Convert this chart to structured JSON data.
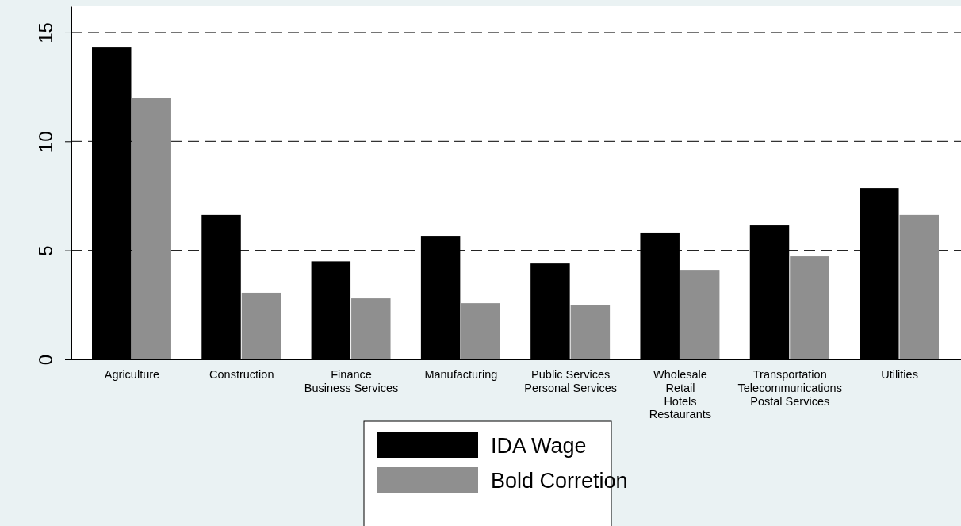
{
  "chart_data": {
    "type": "bar",
    "categories": [
      "Agriculture",
      "Construction",
      "Finance\nBusiness Services",
      "Manufacturing",
      "Public Services\nPersonal Services",
      "Wholesale\nRetail\nHotels\nRestaurants",
      "Transportation\nTelecommunications\nPostal Services",
      "Utilities"
    ],
    "series": [
      {
        "name": "IDA Wage",
        "color": "#000000",
        "values": [
          14.34,
          6.63,
          4.5,
          5.64,
          4.4,
          5.79,
          6.15,
          7.86
        ]
      },
      {
        "name": "Bold Corretion",
        "color": "#8f8f8f",
        "values": [
          12.0,
          3.06,
          2.8,
          2.58,
          2.48,
          4.11,
          4.73,
          6.63
        ]
      }
    ],
    "ylim": [
      0,
      16.2
    ],
    "yticks": [
      0,
      5,
      10,
      15
    ],
    "grid": "y",
    "line_style": "dashed",
    "legend": "bottom"
  }
}
